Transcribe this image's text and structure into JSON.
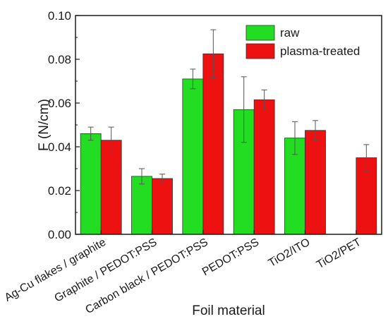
{
  "chart_data": {
    "type": "bar",
    "title": "",
    "xlabel": "Foil material",
    "ylabel": "F (N/cm)",
    "ylim": [
      0,
      0.1
    ],
    "yticks": [
      "0.00",
      "0.02",
      "0.04",
      "0.06",
      "0.08",
      "0.10"
    ],
    "categories": [
      "Ag-Cu flakes / graphite",
      "Graphite / PEDOT:PSS",
      "Carbon black / PEDOT:PSS",
      "PEDOT:PSS",
      "TiO2/ITO",
      "TiO2/PET"
    ],
    "series": [
      {
        "name": "raw",
        "color": "#22dd22",
        "values": [
          0.046,
          0.0265,
          0.071,
          0.057,
          0.044,
          null
        ],
        "errors": [
          0.003,
          0.0035,
          0.0045,
          0.015,
          0.0075,
          null
        ]
      },
      {
        "name": "plasma-treated",
        "color": "#ee1111",
        "values": [
          0.043,
          0.0255,
          0.0825,
          0.0615,
          0.0475,
          0.035
        ],
        "errors": [
          0.006,
          0.002,
          0.011,
          0.0045,
          0.0045,
          0.006
        ]
      }
    ],
    "legend_position": "top-right",
    "grid": false,
    "error_bars": true
  }
}
